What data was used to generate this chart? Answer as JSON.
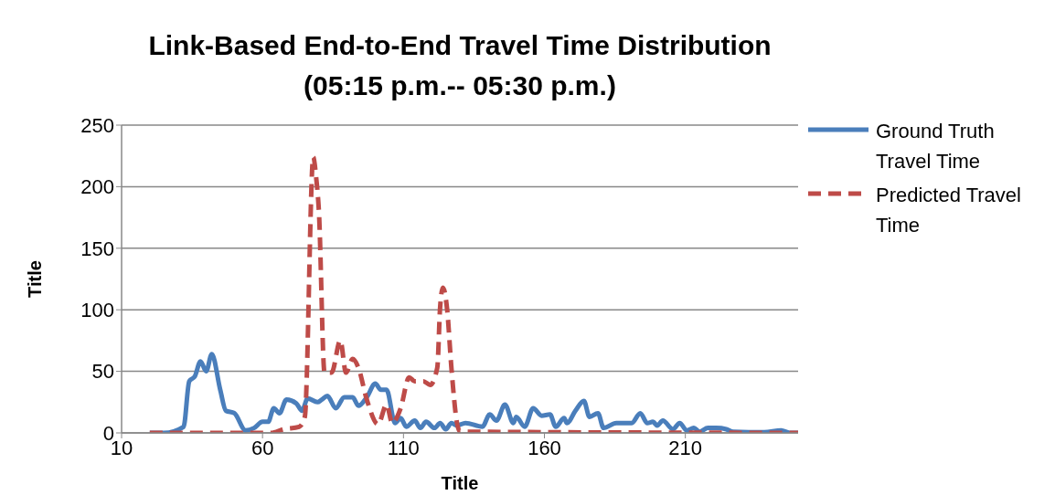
{
  "chart_data": {
    "type": "line",
    "title": "Link-Based End-to-End Travel Time Distribution\n(05:15 p.m.-- 05:30 p.m.)",
    "xlabel": "Title",
    "ylabel": "Title",
    "xlim": [
      10,
      250
    ],
    "xticks": [
      10,
      60,
      110,
      160,
      210
    ],
    "ylim": [
      0,
      250
    ],
    "yticks": [
      0,
      50,
      100,
      150,
      200,
      250
    ],
    "grid": "y",
    "legend": "right",
    "marker": "none",
    "series": [
      {
        "name": "Ground Truth Travel Time",
        "color": "#4a7ebb",
        "line_style": "solid",
        "x": [
          20,
          25,
          32,
          34,
          36,
          38,
          40,
          42,
          45,
          47,
          50,
          54,
          57,
          60,
          62,
          64,
          66,
          68.5,
          72,
          74,
          76,
          79.5,
          81,
          83,
          86,
          89,
          92,
          94,
          97,
          100,
          102,
          104,
          107,
          109,
          111,
          114,
          116,
          118,
          121,
          123,
          125,
          127,
          129,
          132,
          138,
          140.6,
          143,
          146,
          149,
          150,
          153,
          156,
          159,
          162,
          164,
          167,
          168,
          171,
          174,
          176,
          179,
          181,
          185.5,
          191,
          194,
          196.5,
          198.5,
          200,
          202,
          205.6,
          208,
          210.5,
          213,
          215,
          218,
          221,
          224.5,
          227,
          238,
          244,
          247,
          250
        ],
        "values": [
          0,
          0,
          5,
          42,
          46,
          58,
          50,
          64,
          35,
          18,
          16,
          2,
          4,
          9,
          9,
          20,
          16,
          27,
          24,
          18,
          28,
          25,
          27,
          30,
          20,
          29,
          29,
          22,
          29,
          40,
          35,
          35,
          8,
          12,
          5,
          10,
          4,
          9,
          4,
          8,
          3,
          8,
          6,
          8,
          5,
          15,
          10,
          23,
          8,
          13,
          5,
          20,
          14,
          15,
          5,
          12,
          8,
          18,
          26,
          13,
          16,
          4,
          8,
          8,
          16,
          8,
          9,
          6,
          10,
          3,
          8,
          2,
          4,
          1,
          4,
          4,
          3,
          1,
          0.5,
          2,
          0,
          0
        ]
      },
      {
        "name": "Predicted Travel Time",
        "color": "#be4b48",
        "line_style": "dashed",
        "x": [
          20,
          63,
          67.5,
          73,
          75,
          78,
          79,
          80,
          82,
          84.5,
          87.6,
          89.6,
          92,
          94,
          97,
          101,
          104,
          106,
          109,
          112,
          114,
          117,
          119.5,
          122,
          123,
          124,
          125.5,
          127,
          129,
          130,
          250
        ],
        "values": [
          0,
          0,
          3,
          5,
          13,
          224,
          208,
          180,
          49,
          49,
          75,
          49,
          60,
          53,
          27,
          7,
          23,
          8,
          20,
          45,
          42,
          42,
          39,
          53,
          102,
          118,
          100,
          53,
          8,
          1,
          0
        ]
      }
    ]
  }
}
